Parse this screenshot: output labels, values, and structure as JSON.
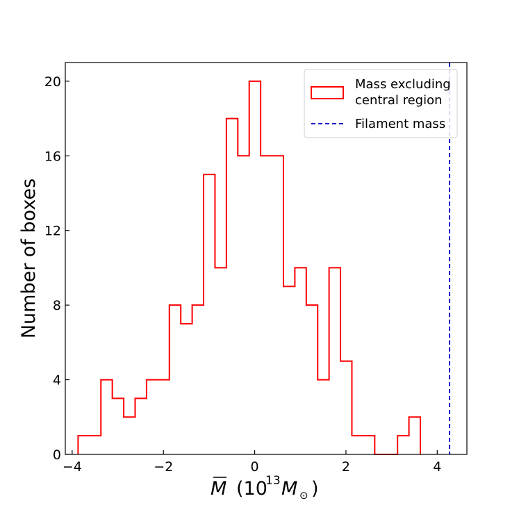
{
  "chart_data": {
    "type": "histogram",
    "xlabel_parts": {
      "symbol": "M",
      "unit_open": "(10",
      "exponent": "13",
      "unit_mass": "M",
      "unit_sub": "⊙",
      "unit_close": ")"
    },
    "ylabel": "Number of boxes",
    "xlim": [
      -4.15,
      4.65
    ],
    "ylim": [
      0,
      21
    ],
    "xticks": [
      -4,
      -2,
      0,
      2,
      4
    ],
    "xtick_labels": [
      "−4",
      "−2",
      "0",
      "2",
      "4"
    ],
    "yticks": [
      0,
      4,
      8,
      12,
      16,
      20
    ],
    "ytick_labels": [
      "0",
      "4",
      "8",
      "12",
      "16",
      "20"
    ],
    "bin_edges": [
      -3.87,
      -3.37,
      -3.12,
      -2.87,
      -2.62,
      -2.37,
      -1.87,
      -1.62,
      -1.37,
      -1.12,
      -0.87,
      -0.62,
      -0.37,
      -0.12,
      0.13,
      0.63,
      0.88,
      1.13,
      1.38,
      1.63,
      1.88,
      2.13,
      2.63,
      3.13,
      3.38,
      3.63
    ],
    "counts": [
      1,
      4,
      3,
      2,
      3,
      4,
      8,
      7,
      8,
      15,
      10,
      18,
      16,
      20,
      16,
      9,
      10,
      8,
      4,
      10,
      5,
      1,
      0,
      1,
      2
    ],
    "series": [
      {
        "name": "Mass excluding central region",
        "legend_lines": [
          "Mass excluding",
          "central region"
        ],
        "color": "#ff0000",
        "style": "step"
      },
      {
        "name": "Filament mass",
        "color": "#0000cc",
        "style": "dashed-vline",
        "x": 4.27
      }
    ],
    "legend_location": "top-right"
  }
}
